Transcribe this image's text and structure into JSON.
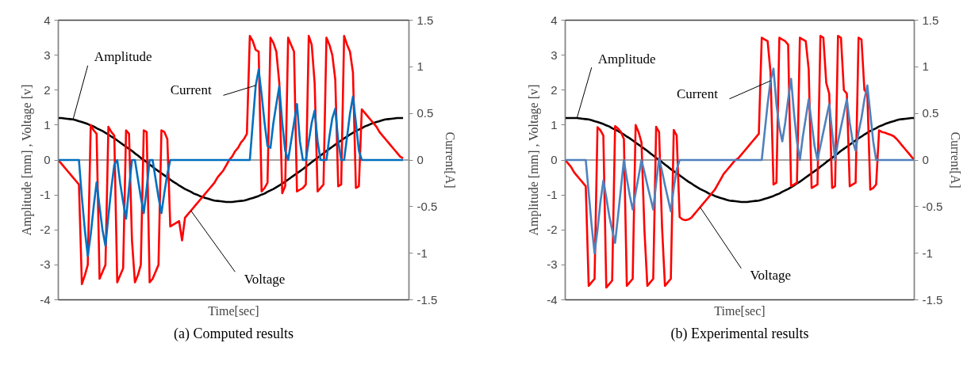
{
  "chart_data": [
    {
      "type": "line",
      "title": "(a) Computed results",
      "annotations": [
        "Amplitude",
        "Current",
        "Voltage"
      ],
      "xlabel": "Time[sec]",
      "ylabel": "Amplitude [mm] , Voltage [v]",
      "y2label": "Current[A]",
      "categories": [
        null,
        null,
        null,
        null,
        null,
        null,
        null,
        null,
        null,
        null,
        null,
        null,
        null,
        null,
        null,
        null,
        null,
        null,
        null,
        null,
        null,
        null,
        null,
        null,
        null,
        null,
        null,
        null,
        null,
        null,
        null,
        null,
        null,
        null,
        null,
        null,
        null,
        null,
        null,
        null,
        null,
        null,
        null,
        null,
        null,
        null,
        null,
        null,
        null,
        null,
        null,
        null,
        null,
        null,
        null,
        null,
        null,
        null,
        null,
        null,
        null,
        null,
        null,
        null,
        null,
        null,
        null,
        null,
        null,
        null,
        null,
        null,
        null,
        null,
        null,
        null,
        null,
        null,
        null,
        null,
        null,
        null,
        null,
        null,
        null,
        null,
        null,
        null,
        null,
        null,
        null,
        null,
        null,
        null,
        null,
        null,
        null,
        null,
        null,
        null,
        null,
        null,
        null,
        null,
        null,
        null,
        null,
        null,
        null,
        null,
        null,
        null,
        null,
        null,
        null,
        null,
        null,
        null,
        null,
        null
      ],
      "ylim": [
        -4,
        4
      ],
      "yticks": [
        -4,
        -3,
        -2,
        -1,
        0,
        1,
        2,
        3,
        4
      ],
      "y2lim": [
        -1.5,
        1.5
      ],
      "y2ticks": [
        -1.5,
        -1,
        -0.5,
        0,
        0.5,
        1,
        1.5
      ],
      "ref_lines": [
        {
          "axis": "y",
          "value": 0,
          "color": "#868686"
        }
      ],
      "series": [
        {
          "color": "#000000",
          "values": [
            1.2,
            1.2,
            1.19,
            1.18,
            1.17,
            1.16,
            1.14,
            1.11,
            1.09,
            1.06,
            1.03,
            0.99,
            0.96,
            0.91,
            0.87,
            0.83,
            0.78,
            0.73,
            0.67,
            0.62,
            0.56,
            0.5,
            0.44,
            0.38,
            0.32,
            0.26,
            0.19,
            0.13,
            0.06,
            0,
            -0.06,
            -0.13,
            -0.19,
            -0.26,
            -0.32,
            -0.38,
            -0.44,
            -0.5,
            -0.56,
            -0.62,
            -0.67,
            -0.73,
            -0.78,
            -0.83,
            -0.87,
            -0.91,
            -0.96,
            -0.99,
            -1.03,
            -1.06,
            -1.09,
            -1.11,
            -1.14,
            -1.16,
            -1.17,
            -1.18,
            -1.19,
            -1.2,
            -1.2,
            -1.2,
            -1.19,
            -1.18,
            -1.17,
            -1.16,
            -1.14,
            -1.11,
            -1.09,
            -1.06,
            -1.03,
            -0.99,
            -0.96,
            -0.91,
            -0.87,
            -0.83,
            -0.78,
            -0.73,
            -0.67,
            -0.62,
            -0.56,
            -0.5,
            -0.44,
            -0.38,
            -0.32,
            -0.26,
            -0.19,
            -0.13,
            -0.06,
            0,
            0.06,
            0.13,
            0.19,
            0.26,
            0.32,
            0.38,
            0.44,
            0.5,
            0.56,
            0.62,
            0.67,
            0.73,
            0.78,
            0.83,
            0.87,
            0.91,
            0.96,
            0.99,
            1.03,
            1.06,
            1.09,
            1.11,
            1.14,
            1.16,
            1.17,
            1.18,
            1.19,
            1.2,
            1.2,
            1.2,
            null,
            null
          ]
        },
        {
          "color": "#ff0000",
          "values": [
            0,
            -0.1,
            -0.2,
            -0.3,
            -0.4,
            -0.5,
            -0.6,
            -0.7,
            -3.55,
            -3.3,
            -3.0,
            1.0,
            0.85,
            0.75,
            -3.4,
            -3.2,
            -3.0,
            0.95,
            0.8,
            0.7,
            -3.5,
            -3.3,
            -3.1,
            0.85,
            0.75,
            -2.3,
            -3.5,
            -3.3,
            -3.0,
            0.85,
            0.8,
            -3.5,
            -3.4,
            -3.2,
            -3.0,
            0.85,
            0.8,
            0.6,
            -1.9,
            -1.85,
            -1.8,
            -1.75,
            -2.3,
            -1.65,
            -1.55,
            -1.45,
            -1.35,
            -1.25,
            -1.15,
            -1.05,
            -0.95,
            -0.85,
            -0.75,
            -0.65,
            -0.5,
            -0.4,
            -0.3,
            -0.15,
            0,
            0.1,
            0.25,
            0.35,
            0.5,
            0.6,
            0.75,
            3.55,
            3.4,
            3.15,
            3.1,
            -0.9,
            -0.8,
            -0.65,
            3.5,
            3.35,
            3.1,
            2.2,
            -0.95,
            -0.75,
            3.5,
            3.3,
            3.1,
            -0.9,
            -0.85,
            -0.8,
            -0.7,
            3.55,
            3.3,
            2.2,
            -0.9,
            -0.8,
            -0.7,
            3.5,
            3.3,
            3.0,
            2.3,
            -0.75,
            -0.7,
            3.55,
            3.3,
            3.1,
            2.5,
            -0.8,
            -0.75,
            1.45,
            1.35,
            1.25,
            1.15,
            1.05,
            0.95,
            0.8,
            0.7,
            0.6,
            0.5,
            0.4,
            0.3,
            0.2,
            0.1,
            0.05,
            null,
            null
          ]
        },
        {
          "color": "#0070c0",
          "axis": "y2",
          "values": [
            0,
            0,
            0,
            0,
            0,
            0,
            0,
            0,
            -0.4,
            -0.75,
            -1.03,
            -0.8,
            -0.5,
            -0.24,
            -0.5,
            -0.75,
            -0.92,
            -0.6,
            -0.3,
            -0.05,
            0,
            -0.25,
            -0.45,
            -0.63,
            -0.3,
            0,
            0,
            -0.2,
            -0.4,
            -0.57,
            -0.3,
            0,
            0,
            -0.2,
            -0.4,
            -0.57,
            -0.35,
            -0.15,
            0,
            0,
            0,
            0,
            0,
            0,
            0,
            0,
            0,
            0,
            0,
            0,
            0,
            0,
            0,
            0,
            0,
            0,
            0,
            0,
            0,
            0,
            0,
            0,
            0,
            0,
            0,
            0,
            0.4,
            0.8,
            0.97,
            0.7,
            0.4,
            0.15,
            0.13,
            0.4,
            0.6,
            0.79,
            0.4,
            0.1,
            0,
            0.2,
            0.4,
            0.6,
            0.2,
            0,
            0,
            0.2,
            0.4,
            0.53,
            0.2,
            0,
            0,
            0,
            0.25,
            0.45,
            0.55,
            0.2,
            0,
            0,
            0.25,
            0.5,
            0.68,
            0.4,
            0.1,
            0,
            0,
            0,
            0,
            0,
            0,
            0,
            0,
            0,
            0,
            0,
            0,
            0,
            0,
            0,
            null,
            null
          ]
        }
      ]
    },
    {
      "type": "line",
      "title": "(b) Experimental results",
      "annotations": [
        "Amplitude",
        "Current",
        "Voltage"
      ],
      "xlabel": "Time[sec]",
      "ylabel": "Amplitude [mm] , Voltage [v]",
      "y2label": "Current[A]",
      "categories": [
        null,
        null,
        null,
        null,
        null,
        null,
        null,
        null,
        null,
        null,
        null,
        null,
        null,
        null,
        null,
        null,
        null,
        null,
        null,
        null,
        null,
        null,
        null,
        null,
        null,
        null,
        null,
        null,
        null,
        null,
        null,
        null,
        null,
        null,
        null,
        null,
        null,
        null,
        null,
        null,
        null,
        null,
        null,
        null,
        null,
        null,
        null,
        null,
        null,
        null,
        null,
        null,
        null,
        null,
        null,
        null,
        null,
        null,
        null,
        null,
        null,
        null,
        null,
        null,
        null,
        null,
        null,
        null,
        null,
        null,
        null,
        null,
        null,
        null,
        null,
        null,
        null,
        null,
        null,
        null,
        null,
        null,
        null,
        null,
        null,
        null,
        null,
        null,
        null,
        null,
        null,
        null,
        null,
        null,
        null,
        null,
        null,
        null,
        null,
        null,
        null,
        null,
        null,
        null,
        null,
        null,
        null,
        null,
        null,
        null,
        null,
        null,
        null,
        null,
        null,
        null,
        null,
        null,
        null,
        null
      ],
      "ylim": [
        -4,
        4
      ],
      "yticks": [
        -4,
        -3,
        -2,
        -1,
        0,
        1,
        2,
        3,
        4
      ],
      "y2lim": [
        -1.5,
        1.5
      ],
      "y2ticks": [
        -1.5,
        -1,
        -0.5,
        0,
        0.5,
        1,
        1.5
      ],
      "ref_lines": [
        {
          "axis": "y",
          "value": 0,
          "color": "#868686"
        }
      ],
      "series": [
        {
          "color": "#000000",
          "values": [
            1.2,
            1.2,
            1.2,
            1.2,
            1.2,
            1.19,
            1.18,
            1.17,
            1.16,
            1.14,
            1.11,
            1.09,
            1.06,
            1.03,
            0.99,
            0.96,
            0.91,
            0.87,
            0.83,
            0.78,
            0.73,
            0.67,
            0.62,
            0.56,
            0.5,
            0.44,
            0.38,
            0.32,
            0.26,
            0.19,
            0.13,
            0.06,
            0,
            -0.06,
            -0.13,
            -0.19,
            -0.26,
            -0.32,
            -0.38,
            -0.44,
            -0.5,
            -0.56,
            -0.62,
            -0.67,
            -0.73,
            -0.78,
            -0.83,
            -0.87,
            -0.91,
            -0.96,
            -0.99,
            -1.03,
            -1.06,
            -1.09,
            -1.11,
            -1.14,
            -1.16,
            -1.17,
            -1.18,
            -1.19,
            -1.2,
            -1.2,
            -1.2,
            -1.19,
            -1.18,
            -1.17,
            -1.16,
            -1.14,
            -1.11,
            -1.09,
            -1.06,
            -1.03,
            -0.99,
            -0.96,
            -0.91,
            -0.87,
            -0.83,
            -0.78,
            -0.73,
            -0.67,
            -0.62,
            -0.56,
            -0.5,
            -0.44,
            -0.38,
            -0.32,
            -0.26,
            -0.19,
            -0.13,
            -0.06,
            0,
            0.06,
            0.13,
            0.19,
            0.26,
            0.32,
            0.38,
            0.44,
            0.5,
            0.56,
            0.62,
            0.67,
            0.73,
            0.78,
            0.83,
            0.87,
            0.91,
            0.96,
            0.99,
            1.03,
            1.06,
            1.09,
            1.11,
            1.14,
            1.16,
            1.17,
            1.18,
            1.19,
            1.2,
            1.2
          ]
        },
        {
          "color": "#ff0000",
          "values": [
            0,
            -0.1,
            -0.2,
            -0.35,
            -0.45,
            -0.55,
            -0.65,
            -0.75,
            -3.6,
            -3.5,
            -3.4,
            0.94,
            0.85,
            0.7,
            -3.65,
            -3.55,
            -3.45,
            0.97,
            0.9,
            0.8,
            0.6,
            -3.6,
            -3.5,
            -3.4,
            1.0,
            0.8,
            0.5,
            -2.0,
            -3.6,
            -3.5,
            -3.4,
            0.95,
            0.8,
            -1.9,
            -3.6,
            -3.5,
            -3.4,
            0.86,
            0.7,
            -1.63,
            -1.7,
            -1.72,
            -1.7,
            -1.65,
            -1.55,
            -1.45,
            -1.35,
            -1.25,
            -1.15,
            -1.05,
            -0.95,
            -0.85,
            -0.7,
            -0.55,
            -0.4,
            -0.3,
            -0.2,
            -0.1,
            0,
            0.05,
            0.15,
            0.25,
            0.35,
            0.45,
            0.55,
            0.65,
            0.75,
            3.5,
            3.45,
            3.4,
            2.5,
            -0.7,
            -0.65,
            3.5,
            3.45,
            3.4,
            3.3,
            -0.75,
            -0.7,
            -0.65,
            3.5,
            3.45,
            3.4,
            2.6,
            -0.8,
            -0.75,
            -0.7,
            3.55,
            3.5,
            2.2,
            1.9,
            -0.8,
            -0.75,
            3.55,
            3.5,
            2.0,
            1.9,
            -0.75,
            -0.7,
            -0.65,
            3.5,
            3.45,
            2.0,
            1.9,
            -0.85,
            -0.8,
            -0.7,
            0.85,
            0.8,
            0.78,
            0.75,
            0.72,
            0.68,
            0.6,
            0.5,
            0.4,
            0.3,
            0.2,
            0.1,
            0
          ]
        },
        {
          "color": "#4f81bd",
          "axis": "y2",
          "values": [
            0,
            0,
            0,
            0,
            0,
            0,
            0,
            0,
            -0.35,
            -0.7,
            -1.0,
            -0.75,
            -0.45,
            -0.22,
            -0.4,
            -0.6,
            -0.75,
            -0.89,
            -0.6,
            -0.3,
            0,
            -0.2,
            -0.38,
            -0.53,
            -0.35,
            -0.18,
            0,
            -0.13,
            -0.27,
            -0.4,
            -0.53,
            -0.25,
            0.02,
            -0.12,
            -0.27,
            -0.41,
            -0.55,
            -0.3,
            -0.1,
            0,
            0,
            0,
            0,
            0,
            0,
            0,
            0,
            0,
            0,
            0,
            0,
            0,
            0,
            0,
            0,
            0,
            0,
            0,
            0,
            0,
            0,
            0,
            0,
            0,
            0,
            0,
            0,
            0,
            0.3,
            0.6,
            0.85,
            0.98,
            0.6,
            0.35,
            0.2,
            0.4,
            0.65,
            0.87,
            0.5,
            0.2,
            0,
            0.25,
            0.45,
            0.65,
            0.4,
            0.15,
            0,
            0.15,
            0.3,
            0.45,
            0.6,
            0.3,
            0,
            0.2,
            0.35,
            0.5,
            0.65,
            0.4,
            0.2,
            0.1,
            0.3,
            0.45,
            0.65,
            0.8,
            0.5,
            0.2,
            0,
            0,
            0,
            0,
            0,
            0,
            0,
            0,
            0,
            0,
            0,
            0,
            0,
            0
          ]
        }
      ]
    }
  ]
}
